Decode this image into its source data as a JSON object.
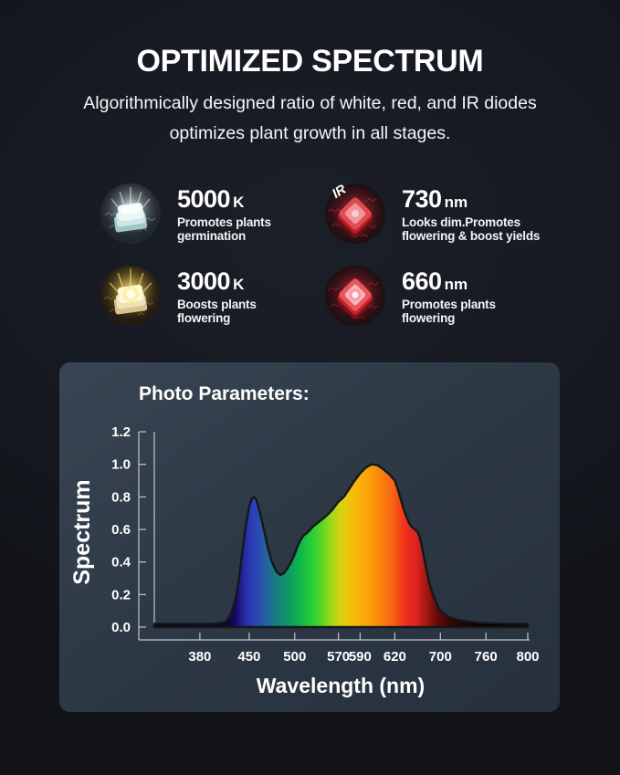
{
  "header": {
    "title": "OPTIMIZED SPECTRUM",
    "subtitle_line1": "Algorithmically designed ratio of white, red, and IR diodes",
    "subtitle_line2": "optimizes plant growth in all stages."
  },
  "features": [
    {
      "value": "5000",
      "unit": "K",
      "desc_line1": "Promotes plants",
      "desc_line2": "germination",
      "icon": "white-diode-icon"
    },
    {
      "value": "730",
      "unit": "nm",
      "desc_line1": "Looks dim.Promotes",
      "desc_line2": "flowering & boost yields",
      "icon": "ir-diode-icon",
      "icon_label": "IR"
    },
    {
      "value": "3000",
      "unit": "K",
      "desc_line1": "Boosts plants",
      "desc_line2": "flowering",
      "icon": "warm-diode-icon"
    },
    {
      "value": "660",
      "unit": "nm",
      "desc_line1": "Promotes plants",
      "desc_line2": "flowering",
      "icon": "red-diode-icon"
    }
  ],
  "panel": {
    "title": "Photo Parameters:"
  },
  "chart_data": {
    "type": "area",
    "title": "Photo Parameters:",
    "xlabel": "Wavelength (nm)",
    "ylabel": "Spectrum",
    "ylim": [
      0,
      1.2
    ],
    "grid": false,
    "legend": null,
    "y_tick_labels": [
      "0.0",
      "0.2",
      "0.4",
      "0.6",
      "0.8",
      "1.0",
      "1.2"
    ],
    "y_ticks": [
      0.0,
      0.2,
      0.4,
      0.6,
      0.8,
      1.0,
      1.2
    ],
    "x_ticks": [
      380,
      450,
      500,
      570,
      590,
      620,
      700,
      760,
      800
    ],
    "x_axis_anchors": [
      [
        315,
        0.0
      ],
      [
        380,
        0.122
      ],
      [
        450,
        0.254
      ],
      [
        500,
        0.376
      ],
      [
        570,
        0.493
      ],
      [
        590,
        0.551
      ],
      [
        620,
        0.644
      ],
      [
        700,
        0.766
      ],
      [
        760,
        0.888
      ],
      [
        800,
        1.0
      ]
    ],
    "points": [
      [
        315,
        0.02
      ],
      [
        400,
        0.02
      ],
      [
        410,
        0.025
      ],
      [
        415,
        0.03
      ],
      [
        420,
        0.05
      ],
      [
        425,
        0.09
      ],
      [
        430,
        0.16
      ],
      [
        435,
        0.28
      ],
      [
        440,
        0.45
      ],
      [
        445,
        0.62
      ],
      [
        450,
        0.74
      ],
      [
        453,
        0.79
      ],
      [
        455,
        0.8
      ],
      [
        458,
        0.78
      ],
      [
        462,
        0.7
      ],
      [
        466,
        0.6
      ],
      [
        470,
        0.5
      ],
      [
        475,
        0.4
      ],
      [
        480,
        0.34
      ],
      [
        484,
        0.32
      ],
      [
        488,
        0.33
      ],
      [
        492,
        0.36
      ],
      [
        496,
        0.4
      ],
      [
        500,
        0.45
      ],
      [
        505,
        0.5
      ],
      [
        510,
        0.54
      ],
      [
        515,
        0.565
      ],
      [
        520,
        0.58
      ],
      [
        525,
        0.6
      ],
      [
        530,
        0.62
      ],
      [
        535,
        0.635
      ],
      [
        540,
        0.65
      ],
      [
        548,
        0.675
      ],
      [
        555,
        0.7
      ],
      [
        560,
        0.72
      ],
      [
        565,
        0.745
      ],
      [
        570,
        0.77
      ],
      [
        575,
        0.8
      ],
      [
        580,
        0.85
      ],
      [
        585,
        0.9
      ],
      [
        590,
        0.945
      ],
      [
        595,
        0.98
      ],
      [
        600,
        1.0
      ],
      [
        605,
        0.995
      ],
      [
        610,
        0.97
      ],
      [
        615,
        0.94
      ],
      [
        620,
        0.9
      ],
      [
        625,
        0.85
      ],
      [
        630,
        0.79
      ],
      [
        635,
        0.73
      ],
      [
        640,
        0.68
      ],
      [
        645,
        0.64
      ],
      [
        650,
        0.615
      ],
      [
        655,
        0.6
      ],
      [
        660,
        0.585
      ],
      [
        663,
        0.56
      ],
      [
        666,
        0.52
      ],
      [
        670,
        0.45
      ],
      [
        675,
        0.36
      ],
      [
        680,
        0.28
      ],
      [
        685,
        0.22
      ],
      [
        690,
        0.17
      ],
      [
        695,
        0.13
      ],
      [
        700,
        0.1
      ],
      [
        705,
        0.08
      ],
      [
        710,
        0.065
      ],
      [
        715,
        0.055
      ],
      [
        720,
        0.048
      ],
      [
        730,
        0.038
      ],
      [
        740,
        0.032
      ],
      [
        750,
        0.027
      ],
      [
        760,
        0.024
      ],
      [
        780,
        0.021
      ],
      [
        800,
        0.02
      ]
    ],
    "gradient_stops": [
      [
        315,
        "#000000"
      ],
      [
        420,
        "#0d0333"
      ],
      [
        432,
        "#1a0a6b"
      ],
      [
        443,
        "#232b9e"
      ],
      [
        452,
        "#2b3ab8"
      ],
      [
        462,
        "#2a4fae"
      ],
      [
        472,
        "#1f6d96"
      ],
      [
        482,
        "#14837f"
      ],
      [
        495,
        "#0f9c62"
      ],
      [
        510,
        "#10b94a"
      ],
      [
        528,
        "#27cf35"
      ],
      [
        545,
        "#5fd723"
      ],
      [
        560,
        "#a3d818"
      ],
      [
        573,
        "#ddd010"
      ],
      [
        585,
        "#f6bb0b"
      ],
      [
        598,
        "#fc9e07"
      ],
      [
        610,
        "#fa7d0e"
      ],
      [
        620,
        "#f75d13"
      ],
      [
        632,
        "#f23c19"
      ],
      [
        645,
        "#ea281d"
      ],
      [
        658,
        "#dc2420"
      ],
      [
        668,
        "#bc1d19"
      ],
      [
        680,
        "#94140f"
      ],
      [
        695,
        "#640b07"
      ],
      [
        712,
        "#3a0503"
      ],
      [
        735,
        "#1b0201"
      ],
      [
        765,
        "#070000"
      ],
      [
        800,
        "#000000"
      ]
    ],
    "axis_color": "#c2c7cd",
    "outline_color": "#14171c"
  }
}
